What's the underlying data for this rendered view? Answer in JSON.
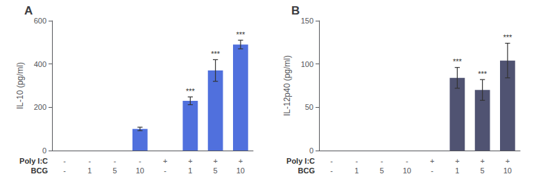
{
  "chart_data": [
    {
      "type": "bar",
      "title": "A",
      "ylabel": "IL-10 (pg/ml)",
      "ylim": [
        0,
        600
      ],
      "yticks": [
        0,
        200,
        400,
        600
      ],
      "grid": false,
      "values": [
        0,
        0,
        0,
        100,
        0,
        230,
        370,
        490
      ],
      "errors": [
        0,
        0,
        0,
        8,
        0,
        18,
        50,
        20
      ],
      "significance": [
        false,
        false,
        false,
        false,
        false,
        true,
        true,
        true
      ],
      "sig_label": "***",
      "x_rows": [
        {
          "label": "Poly I:C",
          "values": [
            "-",
            "-",
            "-",
            "-",
            "+",
            "+",
            "+",
            "+"
          ]
        },
        {
          "label": "BCG",
          "values": [
            "-",
            "1",
            "5",
            "10",
            "-",
            "1",
            "5",
            "10"
          ]
        }
      ]
    },
    {
      "type": "bar",
      "title": "B",
      "ylabel": "IL-12p40 (pg/ml)",
      "ylim": [
        0,
        150
      ],
      "yticks": [
        0,
        50,
        100,
        150
      ],
      "grid": false,
      "values": [
        0,
        0,
        0,
        0,
        0,
        84,
        70,
        104
      ],
      "errors": [
        0,
        0,
        0,
        0,
        0,
        12,
        12,
        20
      ],
      "significance": [
        false,
        false,
        false,
        false,
        false,
        true,
        true,
        true
      ],
      "sig_label": "***",
      "x_rows": [
        {
          "label": "Poly I:C",
          "values": [
            "-",
            "-",
            "-",
            "-",
            "+",
            "+",
            "+",
            "+"
          ]
        },
        {
          "label": "BCG",
          "values": [
            "-",
            "1",
            "5",
            "10",
            "-",
            "1",
            "5",
            "10"
          ]
        }
      ]
    }
  ]
}
